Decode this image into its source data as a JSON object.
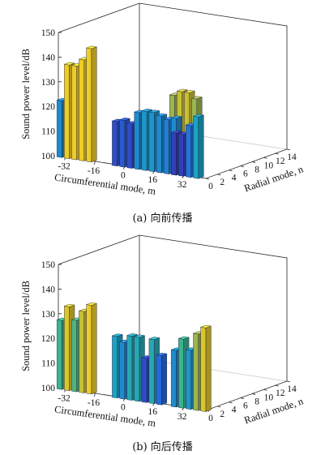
{
  "chart_data": [
    {
      "type": "bar3d",
      "caption": "(a) 向前传播",
      "zlabel": "Sound power level/dB",
      "xlabel": "Circumferential mode, m",
      "ylabel": "Radial mode, n",
      "zlim": [
        100,
        150
      ],
      "z_ticks": [
        "150",
        "140",
        "130",
        "120",
        "110",
        "100"
      ],
      "m_ticks": [
        "-32",
        "-16",
        "0",
        "16",
        "32"
      ],
      "n_ticks": [
        "0",
        "2",
        "4",
        "6",
        "8",
        "10",
        "12",
        "14"
      ],
      "bar_groups": [
        {
          "m": [
            -34,
            -30,
            -26,
            -22,
            -18
          ],
          "n": 0,
          "values": [
            123,
            138,
            138,
            141,
            146
          ]
        },
        {
          "m": [
            -4,
            0,
            4,
            8,
            12,
            16,
            20,
            24,
            28
          ],
          "n": 0,
          "values": [
            118,
            119,
            118,
            123,
            124,
            124,
            123,
            122,
            123
          ]
        },
        {
          "m": [
            24,
            28,
            32,
            36
          ],
          "n": 1,
          "values": [
            131,
            133,
            133,
            131
          ]
        },
        {
          "m": [
            28,
            32,
            36,
            40
          ],
          "n": 0,
          "values": [
            117,
            117,
            121,
            125
          ]
        }
      ]
    },
    {
      "type": "bar3d",
      "caption": "(b) 向后传播",
      "zlabel": "Sound power level/dB",
      "xlabel": "Circumferential mode, m",
      "ylabel": "Radial mode, n",
      "zlim": [
        100,
        150
      ],
      "z_ticks": [
        "150",
        "140",
        "130",
        "120",
        "110",
        "100"
      ],
      "m_ticks": [
        "-32",
        "-16",
        "0",
        "16",
        "32"
      ],
      "n_ticks": [
        "0",
        "2",
        "4",
        "6",
        "8",
        "10",
        "12",
        "14"
      ],
      "bar_groups": [
        {
          "m": [
            -34,
            -30,
            -26,
            -22,
            -18
          ],
          "n": 0,
          "values": [
            128,
            134,
            129,
            133,
            136
          ]
        },
        {
          "m": [
            -4,
            0,
            4,
            8,
            12,
            16,
            20
          ],
          "n": 0,
          "values": [
            125,
            123,
            126,
            126,
            118,
            126,
            120
          ]
        },
        {
          "m": [
            28,
            32,
            36,
            40,
            44
          ],
          "n": 0,
          "values": [
            123,
            128,
            124,
            131,
            134
          ]
        }
      ]
    }
  ]
}
